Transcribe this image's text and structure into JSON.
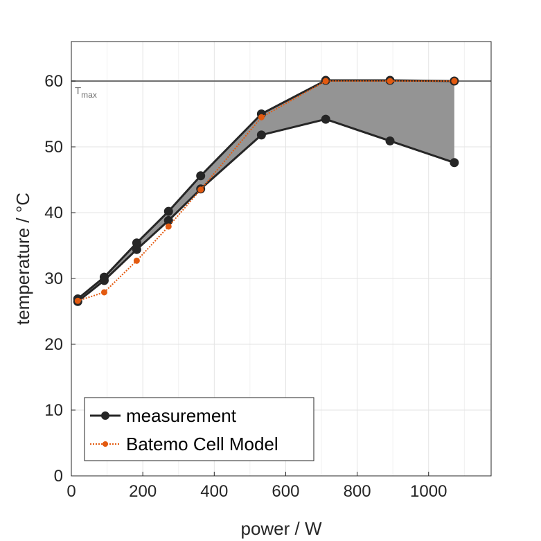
{
  "chart_data": {
    "type": "line",
    "xlabel": "power / W",
    "ylabel": "temperature / °C",
    "xlim": [
      0,
      1175
    ],
    "ylim": [
      0,
      66
    ],
    "xticks": [
      0,
      200,
      400,
      600,
      800,
      1000
    ],
    "yticks": [
      0,
      10,
      20,
      30,
      40,
      50,
      60
    ],
    "grid": true,
    "legend_position": "bottom-left",
    "reference_line": {
      "y": 60,
      "label_main": "T",
      "label_sub": "max",
      "color": "#707070"
    },
    "band": {
      "x": [
        18,
        92,
        183,
        272,
        362,
        532,
        712,
        892,
        1072
      ],
      "upper": [
        26.9,
        30.2,
        35.4,
        40.2,
        45.6,
        55.0,
        60.1,
        60.1,
        60.0
      ],
      "lower": [
        26.5,
        29.7,
        34.4,
        38.8,
        43.6,
        51.8,
        54.2,
        50.9,
        47.6
      ],
      "color": "#949494"
    },
    "series": [
      {
        "name": "measurement",
        "style": "solid-marker",
        "color": "#262626",
        "x": [
          18,
          92,
          183,
          272,
          362,
          532,
          712,
          892,
          1072
        ],
        "y": [
          26.9,
          30.2,
          35.4,
          40.2,
          45.6,
          55.0,
          60.1,
          60.1,
          60.0
        ]
      },
      {
        "name": "",
        "style": "solid-marker",
        "color": "#262626",
        "x": [
          18,
          92,
          183,
          272,
          362,
          532,
          712,
          892,
          1072
        ],
        "y": [
          26.5,
          29.7,
          34.4,
          38.8,
          43.6,
          51.8,
          54.2,
          50.9,
          47.6
        ]
      },
      {
        "name": "Batemo Cell Model",
        "style": "dotted-marker",
        "color": "#e35a10",
        "x": [
          18,
          92,
          183,
          272,
          362,
          532,
          712,
          892,
          1072
        ],
        "y": [
          26.6,
          27.9,
          32.7,
          37.9,
          43.5,
          54.5,
          60.0,
          60.0,
          60.0
        ]
      }
    ]
  }
}
